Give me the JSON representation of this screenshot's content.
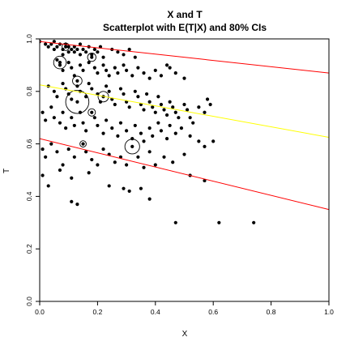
{
  "chart_data": {
    "type": "scatter",
    "title": "X and T",
    "subtitle": "Scatterplot with E(T|X) and 80% CIs",
    "xlabel": "X",
    "ylabel": "T",
    "xlim": [
      0,
      1
    ],
    "ylim": [
      0,
      1
    ],
    "xticks": [
      "0.0",
      "0.2",
      "0.4",
      "0.6",
      "0.8",
      "1.0"
    ],
    "yticks": [
      "0.0",
      "0.2",
      "0.4",
      "0.6",
      "0.8",
      "1.0"
    ],
    "grid": false,
    "lines": [
      {
        "role": "expected",
        "color": "#ffff00",
        "x": [
          0,
          1
        ],
        "y": [
          0.825,
          0.625
        ]
      },
      {
        "role": "upper-ci",
        "color": "#ff0000",
        "x": [
          0,
          1
        ],
        "y": [
          0.99,
          0.87
        ]
      },
      {
        "role": "lower-ci",
        "color": "#ff0000",
        "x": [
          0,
          1
        ],
        "y": [
          0.62,
          0.35
        ]
      }
    ],
    "circles": [
      {
        "x": 0.13,
        "y": 0.76,
        "r": 2.2
      },
      {
        "x": 0.32,
        "y": 0.59,
        "r": 1.4
      },
      {
        "x": 0.07,
        "y": 0.91,
        "r": 1.2
      },
      {
        "x": 0.22,
        "y": 0.78,
        "r": 1.0
      },
      {
        "x": 0.13,
        "y": 0.84,
        "r": 0.9
      },
      {
        "x": 0.18,
        "y": 0.93,
        "r": 0.8
      },
      {
        "x": 0.18,
        "y": 0.72,
        "r": 0.7
      },
      {
        "x": 0.09,
        "y": 0.97,
        "r": 0.7
      },
      {
        "x": 0.15,
        "y": 0.6,
        "r": 0.6
      }
    ],
    "points": [
      [
        0.0,
        0.99
      ],
      [
        0.02,
        0.98
      ],
      [
        0.03,
        0.97
      ],
      [
        0.04,
        0.98
      ],
      [
        0.05,
        0.96
      ],
      [
        0.05,
        0.99
      ],
      [
        0.06,
        0.97
      ],
      [
        0.07,
        0.98
      ],
      [
        0.08,
        0.96
      ],
      [
        0.08,
        0.94
      ],
      [
        0.09,
        0.98
      ],
      [
        0.1,
        0.97
      ],
      [
        0.1,
        0.95
      ],
      [
        0.11,
        0.96
      ],
      [
        0.12,
        0.97
      ],
      [
        0.12,
        0.95
      ],
      [
        0.13,
        0.96
      ],
      [
        0.14,
        0.98
      ],
      [
        0.14,
        0.94
      ],
      [
        0.15,
        0.96
      ],
      [
        0.16,
        0.95
      ],
      [
        0.17,
        0.97
      ],
      [
        0.18,
        0.94
      ],
      [
        0.19,
        0.96
      ],
      [
        0.2,
        0.95
      ],
      [
        0.21,
        0.97
      ],
      [
        0.22,
        0.93
      ],
      [
        0.25,
        0.96
      ],
      [
        0.27,
        0.95
      ],
      [
        0.29,
        0.94
      ],
      [
        0.31,
        0.96
      ],
      [
        0.33,
        0.93
      ],
      [
        0.06,
        0.92
      ],
      [
        0.07,
        0.9
      ],
      [
        0.08,
        0.88
      ],
      [
        0.1,
        0.91
      ],
      [
        0.11,
        0.89
      ],
      [
        0.12,
        0.86
      ],
      [
        0.14,
        0.9
      ],
      [
        0.15,
        0.88
      ],
      [
        0.17,
        0.91
      ],
      [
        0.19,
        0.89
      ],
      [
        0.2,
        0.87
      ],
      [
        0.22,
        0.9
      ],
      [
        0.23,
        0.88
      ],
      [
        0.24,
        0.86
      ],
      [
        0.26,
        0.89
      ],
      [
        0.27,
        0.87
      ],
      [
        0.29,
        0.9
      ],
      [
        0.3,
        0.88
      ],
      [
        0.32,
        0.86
      ],
      [
        0.34,
        0.89
      ],
      [
        0.36,
        0.87
      ],
      [
        0.38,
        0.85
      ],
      [
        0.4,
        0.88
      ],
      [
        0.42,
        0.86
      ],
      [
        0.44,
        0.9
      ],
      [
        0.45,
        0.89
      ],
      [
        0.47,
        0.87
      ],
      [
        0.5,
        0.85
      ],
      [
        0.03,
        0.82
      ],
      [
        0.05,
        0.8
      ],
      [
        0.06,
        0.78
      ],
      [
        0.08,
        0.83
      ],
      [
        0.09,
        0.81
      ],
      [
        0.1,
        0.79
      ],
      [
        0.11,
        0.77
      ],
      [
        0.13,
        0.82
      ],
      [
        0.14,
        0.8
      ],
      [
        0.16,
        0.78
      ],
      [
        0.17,
        0.83
      ],
      [
        0.18,
        0.81
      ],
      [
        0.2,
        0.79
      ],
      [
        0.21,
        0.76
      ],
      [
        0.23,
        0.82
      ],
      [
        0.24,
        0.8
      ],
      [
        0.25,
        0.77
      ],
      [
        0.26,
        0.75
      ],
      [
        0.28,
        0.81
      ],
      [
        0.29,
        0.79
      ],
      [
        0.3,
        0.76
      ],
      [
        0.31,
        0.74
      ],
      [
        0.33,
        0.8
      ],
      [
        0.34,
        0.78
      ],
      [
        0.35,
        0.75
      ],
      [
        0.36,
        0.73
      ],
      [
        0.37,
        0.79
      ],
      [
        0.38,
        0.76
      ],
      [
        0.39,
        0.74
      ],
      [
        0.4,
        0.72
      ],
      [
        0.41,
        0.78
      ],
      [
        0.42,
        0.75
      ],
      [
        0.43,
        0.73
      ],
      [
        0.44,
        0.71
      ],
      [
        0.45,
        0.76
      ],
      [
        0.46,
        0.74
      ],
      [
        0.47,
        0.72
      ],
      [
        0.48,
        0.7
      ],
      [
        0.5,
        0.75
      ],
      [
        0.51,
        0.73
      ],
      [
        0.52,
        0.7
      ],
      [
        0.53,
        0.68
      ],
      [
        0.55,
        0.74
      ],
      [
        0.57,
        0.72
      ],
      [
        0.58,
        0.77
      ],
      [
        0.59,
        0.75
      ],
      [
        0.01,
        0.72
      ],
      [
        0.02,
        0.69
      ],
      [
        0.04,
        0.74
      ],
      [
        0.05,
        0.7
      ],
      [
        0.07,
        0.68
      ],
      [
        0.08,
        0.72
      ],
      [
        0.09,
        0.66
      ],
      [
        0.11,
        0.7
      ],
      [
        0.12,
        0.67
      ],
      [
        0.14,
        0.72
      ],
      [
        0.15,
        0.68
      ],
      [
        0.16,
        0.65
      ],
      [
        0.19,
        0.7
      ],
      [
        0.2,
        0.67
      ],
      [
        0.22,
        0.64
      ],
      [
        0.23,
        0.69
      ],
      [
        0.25,
        0.66
      ],
      [
        0.27,
        0.63
      ],
      [
        0.28,
        0.68
      ],
      [
        0.3,
        0.65
      ],
      [
        0.32,
        0.62
      ],
      [
        0.33,
        0.67
      ],
      [
        0.35,
        0.64
      ],
      [
        0.36,
        0.61
      ],
      [
        0.38,
        0.66
      ],
      [
        0.39,
        0.63
      ],
      [
        0.41,
        0.68
      ],
      [
        0.42,
        0.65
      ],
      [
        0.44,
        0.62
      ],
      [
        0.45,
        0.67
      ],
      [
        0.47,
        0.64
      ],
      [
        0.49,
        0.66
      ],
      [
        0.52,
        0.63
      ],
      [
        0.55,
        0.61
      ],
      [
        0.57,
        0.59
      ],
      [
        0.6,
        0.61
      ],
      [
        0.01,
        0.58
      ],
      [
        0.02,
        0.55
      ],
      [
        0.04,
        0.6
      ],
      [
        0.06,
        0.57
      ],
      [
        0.08,
        0.52
      ],
      [
        0.1,
        0.58
      ],
      [
        0.12,
        0.55
      ],
      [
        0.16,
        0.57
      ],
      [
        0.18,
        0.54
      ],
      [
        0.2,
        0.52
      ],
      [
        0.22,
        0.58
      ],
      [
        0.24,
        0.56
      ],
      [
        0.26,
        0.53
      ],
      [
        0.28,
        0.55
      ],
      [
        0.3,
        0.52
      ],
      [
        0.34,
        0.55
      ],
      [
        0.36,
        0.51
      ],
      [
        0.38,
        0.57
      ],
      [
        0.4,
        0.52
      ],
      [
        0.43,
        0.55
      ],
      [
        0.46,
        0.53
      ],
      [
        0.5,
        0.56
      ],
      [
        0.52,
        0.48
      ],
      [
        0.57,
        0.46
      ],
      [
        0.01,
        0.48
      ],
      [
        0.03,
        0.44
      ],
      [
        0.07,
        0.5
      ],
      [
        0.11,
        0.47
      ],
      [
        0.17,
        0.49
      ],
      [
        0.24,
        0.44
      ],
      [
        0.29,
        0.43
      ],
      [
        0.31,
        0.42
      ],
      [
        0.35,
        0.43
      ],
      [
        0.38,
        0.39
      ],
      [
        0.11,
        0.38
      ],
      [
        0.13,
        0.37
      ],
      [
        0.47,
        0.3
      ],
      [
        0.62,
        0.3
      ],
      [
        0.74,
        0.3
      ]
    ]
  }
}
